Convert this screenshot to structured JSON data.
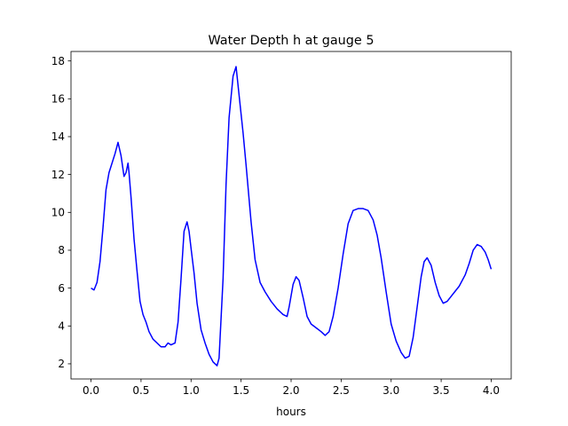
{
  "chart_data": {
    "type": "line",
    "title": "Water Depth h at gauge 5",
    "xlabel": "hours",
    "ylabel": "",
    "xlim": [
      -0.2,
      4.2
    ],
    "ylim": [
      1.2,
      18.5
    ],
    "xticks": [
      0.0,
      0.5,
      1.0,
      1.5,
      2.0,
      2.5,
      3.0,
      3.5,
      4.0
    ],
    "xtick_labels": [
      "0.0",
      "0.5",
      "1.0",
      "1.5",
      "2.0",
      "2.5",
      "3.0",
      "3.5",
      "4.0"
    ],
    "yticks": [
      2,
      4,
      6,
      8,
      10,
      12,
      14,
      16,
      18
    ],
    "ytick_labels": [
      "2",
      "4",
      "6",
      "8",
      "10",
      "12",
      "14",
      "16",
      "18"
    ],
    "grid": false,
    "series": [
      {
        "color": "#0000ff",
        "x": [
          0.0,
          0.03,
          0.06,
          0.09,
          0.12,
          0.15,
          0.18,
          0.21,
          0.24,
          0.27,
          0.3,
          0.33,
          0.35,
          0.37,
          0.38,
          0.4,
          0.43,
          0.46,
          0.49,
          0.52,
          0.55,
          0.58,
          0.62,
          0.66,
          0.7,
          0.74,
          0.77,
          0.8,
          0.84,
          0.87,
          0.9,
          0.93,
          0.96,
          0.98,
          1.0,
          1.03,
          1.06,
          1.1,
          1.14,
          1.18,
          1.22,
          1.26,
          1.28,
          1.32,
          1.35,
          1.38,
          1.42,
          1.45,
          1.48,
          1.52,
          1.55,
          1.6,
          1.64,
          1.69,
          1.74,
          1.8,
          1.86,
          1.92,
          1.96,
          1.98,
          2.02,
          2.05,
          2.08,
          2.12,
          2.16,
          2.2,
          2.25,
          2.3,
          2.34,
          2.38,
          2.42,
          2.47,
          2.52,
          2.57,
          2.62,
          2.67,
          2.72,
          2.77,
          2.82,
          2.86,
          2.9,
          2.95,
          3.0,
          3.05,
          3.1,
          3.14,
          3.18,
          3.22,
          3.26,
          3.3,
          3.33,
          3.36,
          3.4,
          3.44,
          3.48,
          3.52,
          3.56,
          3.62,
          3.68,
          3.74,
          3.78,
          3.82,
          3.86,
          3.9,
          3.94,
          3.97,
          4.0
        ],
        "y": [
          6.0,
          5.9,
          6.3,
          7.4,
          9.2,
          11.2,
          12.1,
          12.6,
          13.1,
          13.7,
          13.0,
          11.9,
          12.1,
          12.6,
          12.1,
          10.8,
          8.6,
          6.9,
          5.3,
          4.6,
          4.2,
          3.7,
          3.3,
          3.1,
          2.9,
          2.9,
          3.1,
          3.0,
          3.1,
          4.2,
          6.5,
          9.0,
          9.5,
          9.0,
          8.1,
          6.8,
          5.2,
          3.8,
          3.1,
          2.5,
          2.1,
          1.9,
          2.3,
          6.5,
          11.5,
          15.0,
          17.2,
          17.7,
          16.2,
          14.2,
          12.5,
          9.5,
          7.5,
          6.3,
          5.8,
          5.3,
          4.9,
          4.6,
          4.5,
          5.0,
          6.2,
          6.6,
          6.4,
          5.5,
          4.5,
          4.1,
          3.9,
          3.7,
          3.5,
          3.7,
          4.5,
          6.0,
          7.8,
          9.4,
          10.1,
          10.2,
          10.2,
          10.1,
          9.6,
          8.8,
          7.6,
          5.8,
          4.1,
          3.2,
          2.6,
          2.3,
          2.4,
          3.4,
          5.0,
          6.6,
          7.4,
          7.6,
          7.2,
          6.3,
          5.6,
          5.2,
          5.3,
          5.7,
          6.1,
          6.7,
          7.3,
          8.0,
          8.3,
          8.2,
          7.9,
          7.5,
          7.0
        ]
      }
    ]
  }
}
